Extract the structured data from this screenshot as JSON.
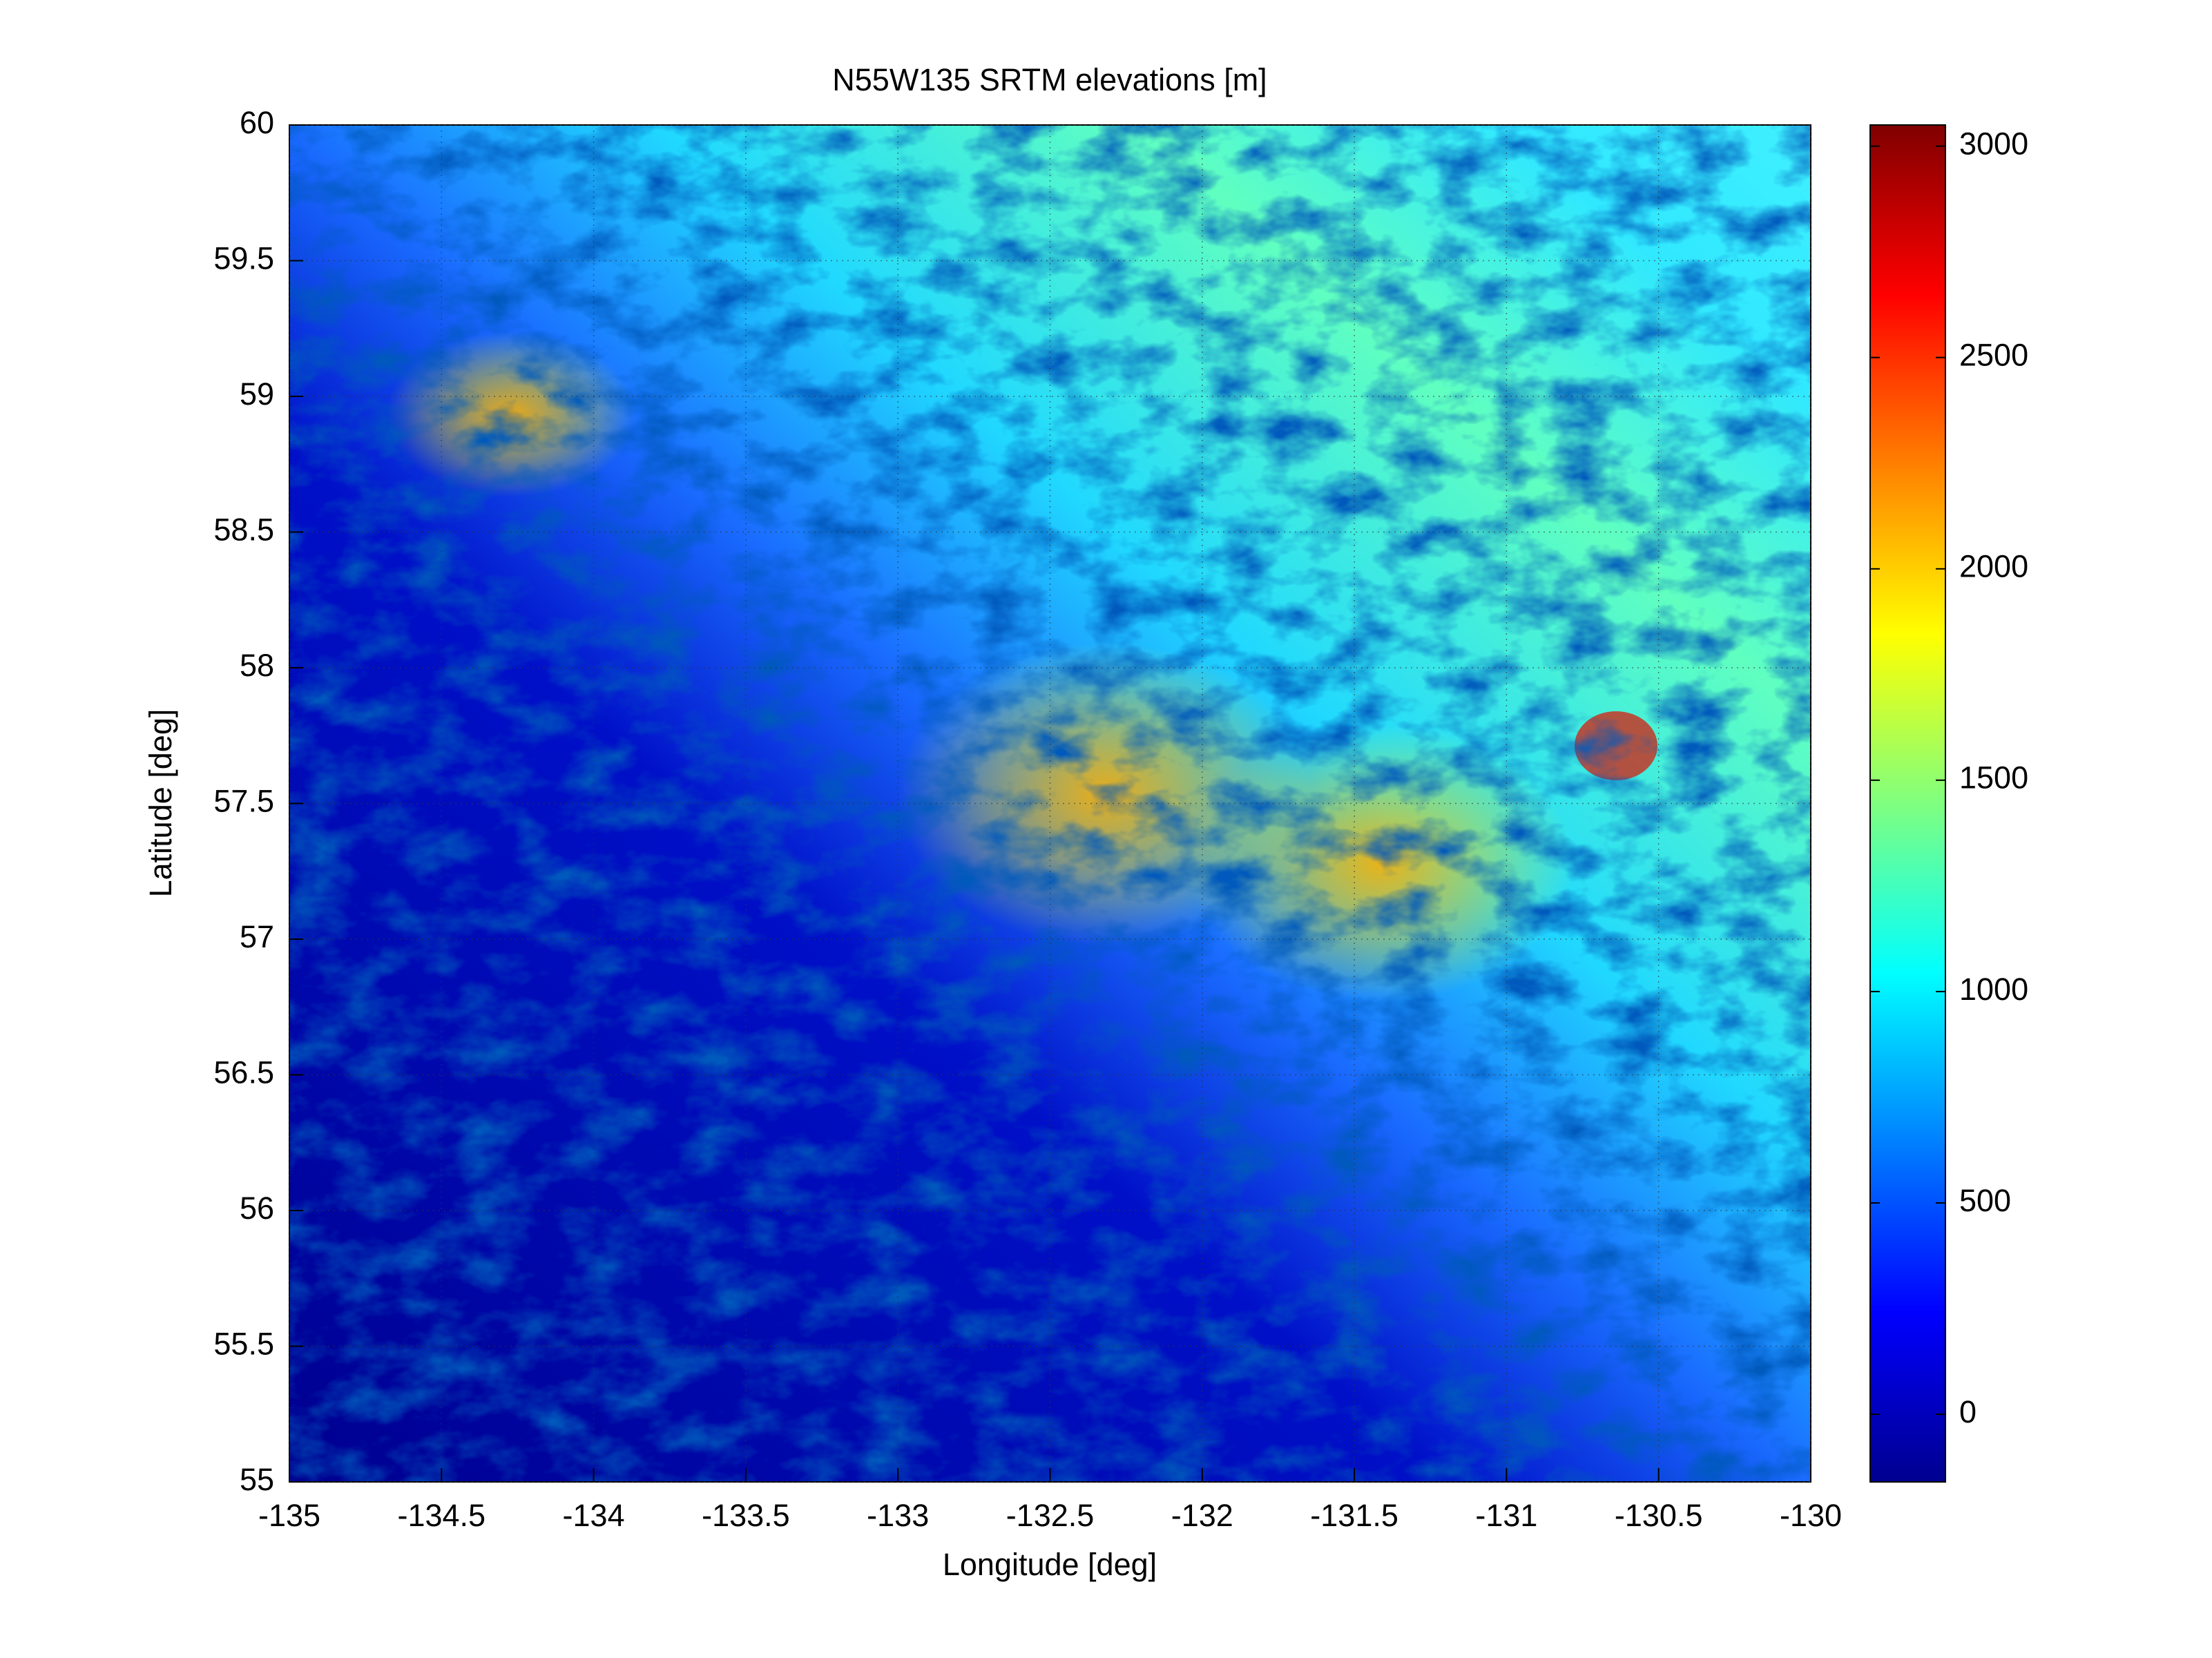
{
  "chart_data": {
    "type": "heatmap",
    "title": "N55W135 SRTM elevations [m]",
    "xlabel": "Longitude [deg]",
    "ylabel": "Latitude [deg]",
    "xlim": [
      -135,
      -130
    ],
    "xticks": [
      -135,
      -134.5,
      -134,
      -133.5,
      -133,
      -132.5,
      -132,
      -131.5,
      -131,
      -130.5,
      -130
    ],
    "ylim": [
      55,
      60
    ],
    "yticks": [
      55,
      55.5,
      56,
      56.5,
      57,
      57.5,
      58,
      58.5,
      59,
      59.5,
      60
    ],
    "clim": [
      -160,
      3050
    ],
    "cticks": [
      0,
      500,
      1000,
      1500,
      2000,
      2500,
      3000
    ],
    "colormap": "jet",
    "grid": true
  }
}
